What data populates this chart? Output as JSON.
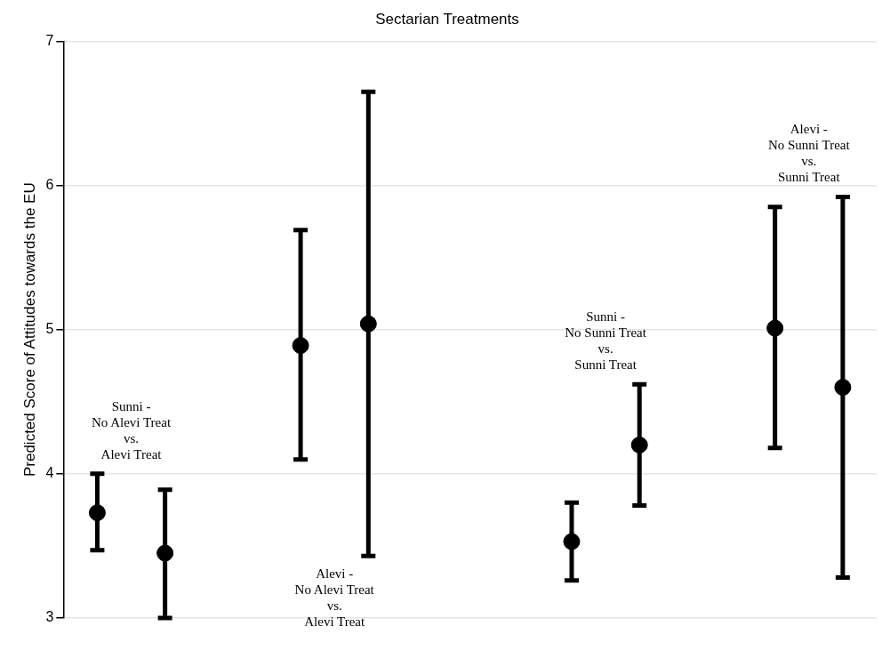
{
  "chart_data": {
    "type": "scatter",
    "title": "Sectarian Treatments",
    "ylabel": "Predicted Score of Attitudes towards the EU",
    "categories": [
      null,
      null,
      null,
      null,
      null,
      null,
      null,
      null,
      null,
      null,
      null,
      null
    ],
    "series": [
      {
        "color": "#000000",
        "values": [
          3.73,
          3.45,
          null,
          4.89,
          5.04,
          null,
          null,
          3.53,
          4.2,
          null,
          5.01,
          4.6
        ],
        "errors": [
          [
            3.47,
            4.0
          ],
          [
            3.0,
            3.89
          ],
          null,
          [
            4.1,
            5.69
          ],
          [
            3.43,
            6.65
          ],
          null,
          null,
          [
            3.26,
            3.8
          ],
          [
            3.78,
            4.62
          ],
          null,
          [
            4.18,
            5.85
          ],
          [
            3.28,
            5.92
          ]
        ]
      }
    ],
    "ylim": [
      3,
      7
    ],
    "yticks": [
      3,
      4,
      5,
      6,
      7
    ],
    "grid": "y",
    "tick_labels": "y",
    "marker": "circle",
    "annotations": [
      "Sunni -\nNo Alevi Treat\nvs.\nAlevi Treat",
      "Alevi -\nNo Alevi Treat\nvs.\nAlevi Treat",
      "Sunni -\nNo Sunni Treat\nvs.\nSunni Treat",
      "Alevi -\nNo Sunni Treat\nvs.\nSunni Treat"
    ]
  }
}
